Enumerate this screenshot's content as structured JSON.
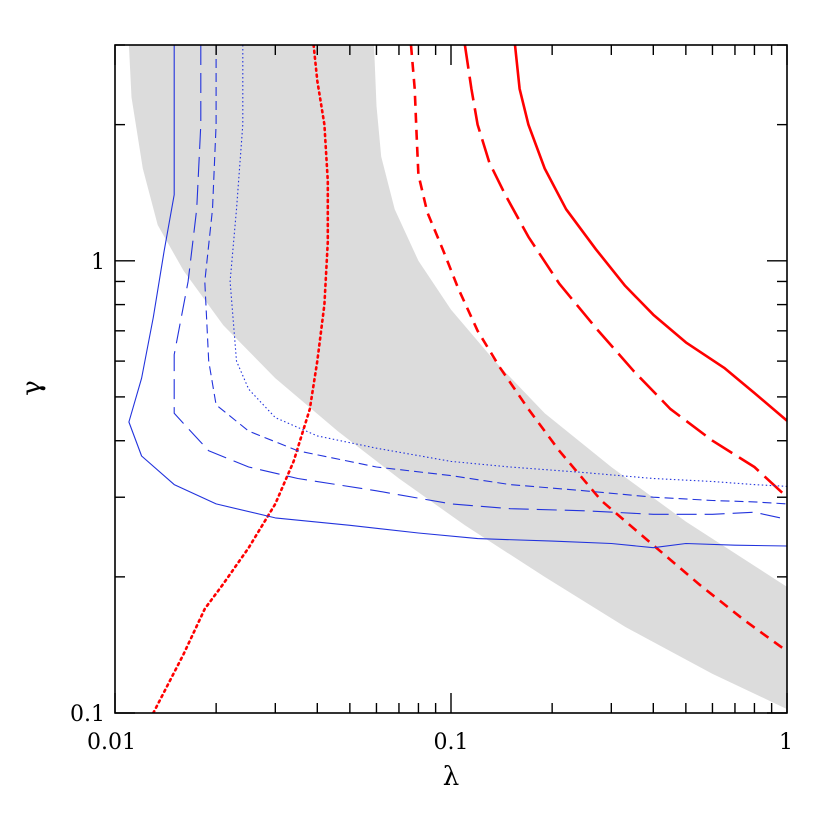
{
  "chart_data": {
    "type": "line",
    "title": "",
    "xlabel": "λ",
    "ylabel": "γ",
    "x_scale": "log",
    "y_scale": "log",
    "xlim": [
      0.01,
      1
    ],
    "ylim": [
      0.1,
      3.0
    ],
    "grid": false,
    "x_tick_labels": [
      {
        "value": 0.01,
        "label": "0.01"
      },
      {
        "value": 0.1,
        "label": "0.1"
      },
      {
        "value": 1,
        "label": "1"
      }
    ],
    "y_tick_labels": [
      {
        "value": 0.1,
        "label": "0.1"
      },
      {
        "value": 1,
        "label": "1"
      }
    ],
    "x_minor_ticks": [
      0.02,
      0.03,
      0.04,
      0.05,
      0.06,
      0.07,
      0.08,
      0.09,
      0.2,
      0.3,
      0.4,
      0.5,
      0.6,
      0.7,
      0.8,
      0.9
    ],
    "y_minor_ticks": [
      0.2,
      0.3,
      0.4,
      0.5,
      0.6,
      0.7,
      0.8,
      0.9,
      2,
      3
    ],
    "band": {
      "color": "#dcdcdc",
      "left_edge": [
        [
          0.011,
          3.0
        ],
        [
          0.0112,
          2.3
        ],
        [
          0.0121,
          1.6
        ],
        [
          0.0134,
          1.2
        ],
        [
          0.016,
          0.95
        ],
        [
          0.021,
          0.72
        ],
        [
          0.03,
          0.55
        ],
        [
          0.046,
          0.42
        ],
        [
          0.07,
          0.33
        ],
        [
          0.11,
          0.26
        ],
        [
          0.19,
          0.2
        ],
        [
          0.33,
          0.155
        ],
        [
          0.6,
          0.122
        ],
        [
          1.0,
          0.102
        ]
      ],
      "right_edge": [
        [
          0.059,
          3.0
        ],
        [
          0.06,
          2.2
        ],
        [
          0.062,
          1.7
        ],
        [
          0.068,
          1.3
        ],
        [
          0.08,
          1.0
        ],
        [
          0.1,
          0.78
        ],
        [
          0.135,
          0.6
        ],
        [
          0.19,
          0.46
        ],
        [
          0.3,
          0.35
        ],
        [
          0.5,
          0.265
        ],
        [
          1.0,
          0.19
        ]
      ]
    },
    "series": [
      {
        "color": "#ff0000",
        "style": "dotted",
        "width": 2.6,
        "points": [
          [
            0.013,
            0.1
          ],
          [
            0.016,
            0.135
          ],
          [
            0.0185,
            0.17
          ],
          [
            0.021,
            0.193
          ],
          [
            0.025,
            0.232
          ],
          [
            0.03,
            0.29
          ],
          [
            0.034,
            0.36
          ],
          [
            0.038,
            0.47
          ],
          [
            0.04,
            0.6
          ],
          [
            0.042,
            0.8
          ],
          [
            0.043,
            1.1
          ],
          [
            0.043,
            1.5
          ],
          [
            0.042,
            2.0
          ],
          [
            0.04,
            2.5
          ],
          [
            0.039,
            3.0
          ]
        ]
      },
      {
        "color": "#ff0000",
        "style": "dashed",
        "width": 2.6,
        "points": [
          [
            0.076,
            3.0
          ],
          [
            0.078,
            2.4
          ],
          [
            0.079,
            1.9
          ],
          [
            0.08,
            1.55
          ],
          [
            0.085,
            1.28
          ],
          [
            0.095,
            1.05
          ],
          [
            0.105,
            0.87
          ],
          [
            0.12,
            0.7
          ],
          [
            0.14,
            0.58
          ],
          [
            0.17,
            0.47
          ],
          [
            0.21,
            0.38
          ],
          [
            0.28,
            0.295
          ],
          [
            0.4,
            0.235
          ],
          [
            0.55,
            0.192
          ],
          [
            0.75,
            0.16
          ],
          [
            1.0,
            0.137
          ]
        ]
      },
      {
        "color": "#ff0000",
        "style": "longdash",
        "width": 2.6,
        "points": [
          [
            0.11,
            3.0
          ],
          [
            0.115,
            2.4
          ],
          [
            0.12,
            2.0
          ],
          [
            0.13,
            1.65
          ],
          [
            0.145,
            1.4
          ],
          [
            0.17,
            1.13
          ],
          [
            0.21,
            0.89
          ],
          [
            0.27,
            0.71
          ],
          [
            0.35,
            0.57
          ],
          [
            0.45,
            0.47
          ],
          [
            0.6,
            0.4
          ],
          [
            0.8,
            0.35
          ],
          [
            1.0,
            0.3
          ]
        ]
      },
      {
        "color": "#ff0000",
        "style": "solid",
        "width": 2.6,
        "points": [
          [
            0.155,
            3.0
          ],
          [
            0.16,
            2.4
          ],
          [
            0.17,
            2.0
          ],
          [
            0.19,
            1.6
          ],
          [
            0.22,
            1.3
          ],
          [
            0.27,
            1.06
          ],
          [
            0.33,
            0.88
          ],
          [
            0.4,
            0.76
          ],
          [
            0.5,
            0.66
          ],
          [
            0.65,
            0.58
          ],
          [
            0.8,
            0.51
          ],
          [
            1.0,
            0.443
          ]
        ]
      },
      {
        "color": "#2233dd",
        "style": "solid",
        "width": 1.1,
        "points": [
          [
            0.015,
            3.0
          ],
          [
            0.015,
            2.0
          ],
          [
            0.015,
            1.4
          ],
          [
            0.014,
            1.05
          ],
          [
            0.013,
            0.75
          ],
          [
            0.012,
            0.55
          ],
          [
            0.011,
            0.44
          ],
          [
            0.012,
            0.37
          ],
          [
            0.015,
            0.32
          ],
          [
            0.02,
            0.29
          ],
          [
            0.03,
            0.27
          ],
          [
            0.05,
            0.26
          ],
          [
            0.08,
            0.25
          ],
          [
            0.12,
            0.243
          ],
          [
            0.2,
            0.24
          ],
          [
            0.3,
            0.237
          ],
          [
            0.4,
            0.232
          ],
          [
            0.5,
            0.237
          ],
          [
            0.7,
            0.235
          ],
          [
            1.0,
            0.234
          ]
        ]
      },
      {
        "color": "#2233dd",
        "style": "longdash",
        "width": 1.1,
        "points": [
          [
            0.018,
            3.0
          ],
          [
            0.018,
            2.0
          ],
          [
            0.0175,
            1.3
          ],
          [
            0.0165,
            0.9
          ],
          [
            0.015,
            0.62
          ],
          [
            0.015,
            0.46
          ],
          [
            0.019,
            0.38
          ],
          [
            0.025,
            0.35
          ],
          [
            0.035,
            0.33
          ],
          [
            0.06,
            0.31
          ],
          [
            0.1,
            0.29
          ],
          [
            0.15,
            0.283
          ],
          [
            0.25,
            0.28
          ],
          [
            0.4,
            0.275
          ],
          [
            0.6,
            0.275
          ],
          [
            0.8,
            0.278
          ],
          [
            1.0,
            0.268
          ]
        ]
      },
      {
        "color": "#2233dd",
        "style": "dashed",
        "width": 1.1,
        "points": [
          [
            0.02,
            3.0
          ],
          [
            0.02,
            2.0
          ],
          [
            0.0195,
            1.3
          ],
          [
            0.0185,
            0.9
          ],
          [
            0.019,
            0.6
          ],
          [
            0.02,
            0.48
          ],
          [
            0.025,
            0.42
          ],
          [
            0.035,
            0.38
          ],
          [
            0.06,
            0.35
          ],
          [
            0.1,
            0.335
          ],
          [
            0.15,
            0.32
          ],
          [
            0.25,
            0.31
          ],
          [
            0.4,
            0.3
          ],
          [
            0.6,
            0.295
          ],
          [
            0.8,
            0.293
          ],
          [
            1.0,
            0.29
          ]
        ]
      },
      {
        "color": "#2233dd",
        "style": "dotted",
        "width": 1.1,
        "points": [
          [
            0.024,
            3.0
          ],
          [
            0.024,
            2.0
          ],
          [
            0.023,
            1.3
          ],
          [
            0.022,
            0.9
          ],
          [
            0.023,
            0.6
          ],
          [
            0.025,
            0.52
          ],
          [
            0.03,
            0.45
          ],
          [
            0.04,
            0.41
          ],
          [
            0.06,
            0.385
          ],
          [
            0.1,
            0.36
          ],
          [
            0.15,
            0.35
          ],
          [
            0.25,
            0.34
          ],
          [
            0.4,
            0.33
          ],
          [
            0.6,
            0.325
          ],
          [
            0.8,
            0.32
          ],
          [
            1.0,
            0.317
          ]
        ]
      }
    ]
  }
}
